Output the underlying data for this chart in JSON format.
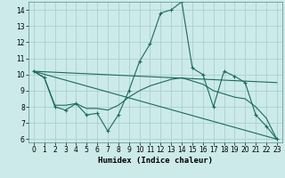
{
  "xlabel": "Humidex (Indice chaleur)",
  "background_color": "#cceaea",
  "grid_color": "#aacfcf",
  "line_color": "#1a6b5a",
  "xlim": [
    -0.5,
    23.5
  ],
  "ylim": [
    5.8,
    14.5
  ],
  "xticks": [
    0,
    1,
    2,
    3,
    4,
    5,
    6,
    7,
    8,
    9,
    10,
    11,
    12,
    13,
    14,
    15,
    16,
    17,
    18,
    19,
    20,
    21,
    22,
    23
  ],
  "yticks": [
    6,
    7,
    8,
    9,
    10,
    11,
    12,
    13,
    14
  ],
  "line1_x": [
    0,
    1,
    2,
    3,
    4,
    5,
    6,
    7,
    8,
    9,
    10,
    11,
    12,
    13,
    14,
    15,
    16,
    17,
    18,
    19,
    20,
    21,
    22,
    23
  ],
  "line1_y": [
    10.2,
    9.8,
    8.0,
    7.8,
    8.2,
    7.5,
    7.6,
    6.5,
    7.5,
    9.0,
    10.8,
    11.9,
    13.8,
    14.0,
    14.5,
    10.4,
    10.0,
    8.0,
    10.2,
    9.9,
    9.5,
    7.5,
    6.8,
    6.0
  ],
  "line2_x": [
    0,
    23
  ],
  "line2_y": [
    10.2,
    9.5
  ],
  "line3_x": [
    0,
    1,
    2,
    3,
    4,
    5,
    6,
    7,
    8,
    9,
    10,
    11,
    12,
    13,
    14,
    15,
    16,
    17,
    18,
    19,
    20,
    21,
    22,
    23
  ],
  "line3_y": [
    10.2,
    9.8,
    8.1,
    8.1,
    8.2,
    7.9,
    7.9,
    7.8,
    8.1,
    8.6,
    9.0,
    9.3,
    9.5,
    9.7,
    9.8,
    9.6,
    9.4,
    9.0,
    8.8,
    8.6,
    8.5,
    8.0,
    7.3,
    6.0
  ],
  "line4_x": [
    0,
    23
  ],
  "line4_y": [
    10.2,
    6.0
  ]
}
